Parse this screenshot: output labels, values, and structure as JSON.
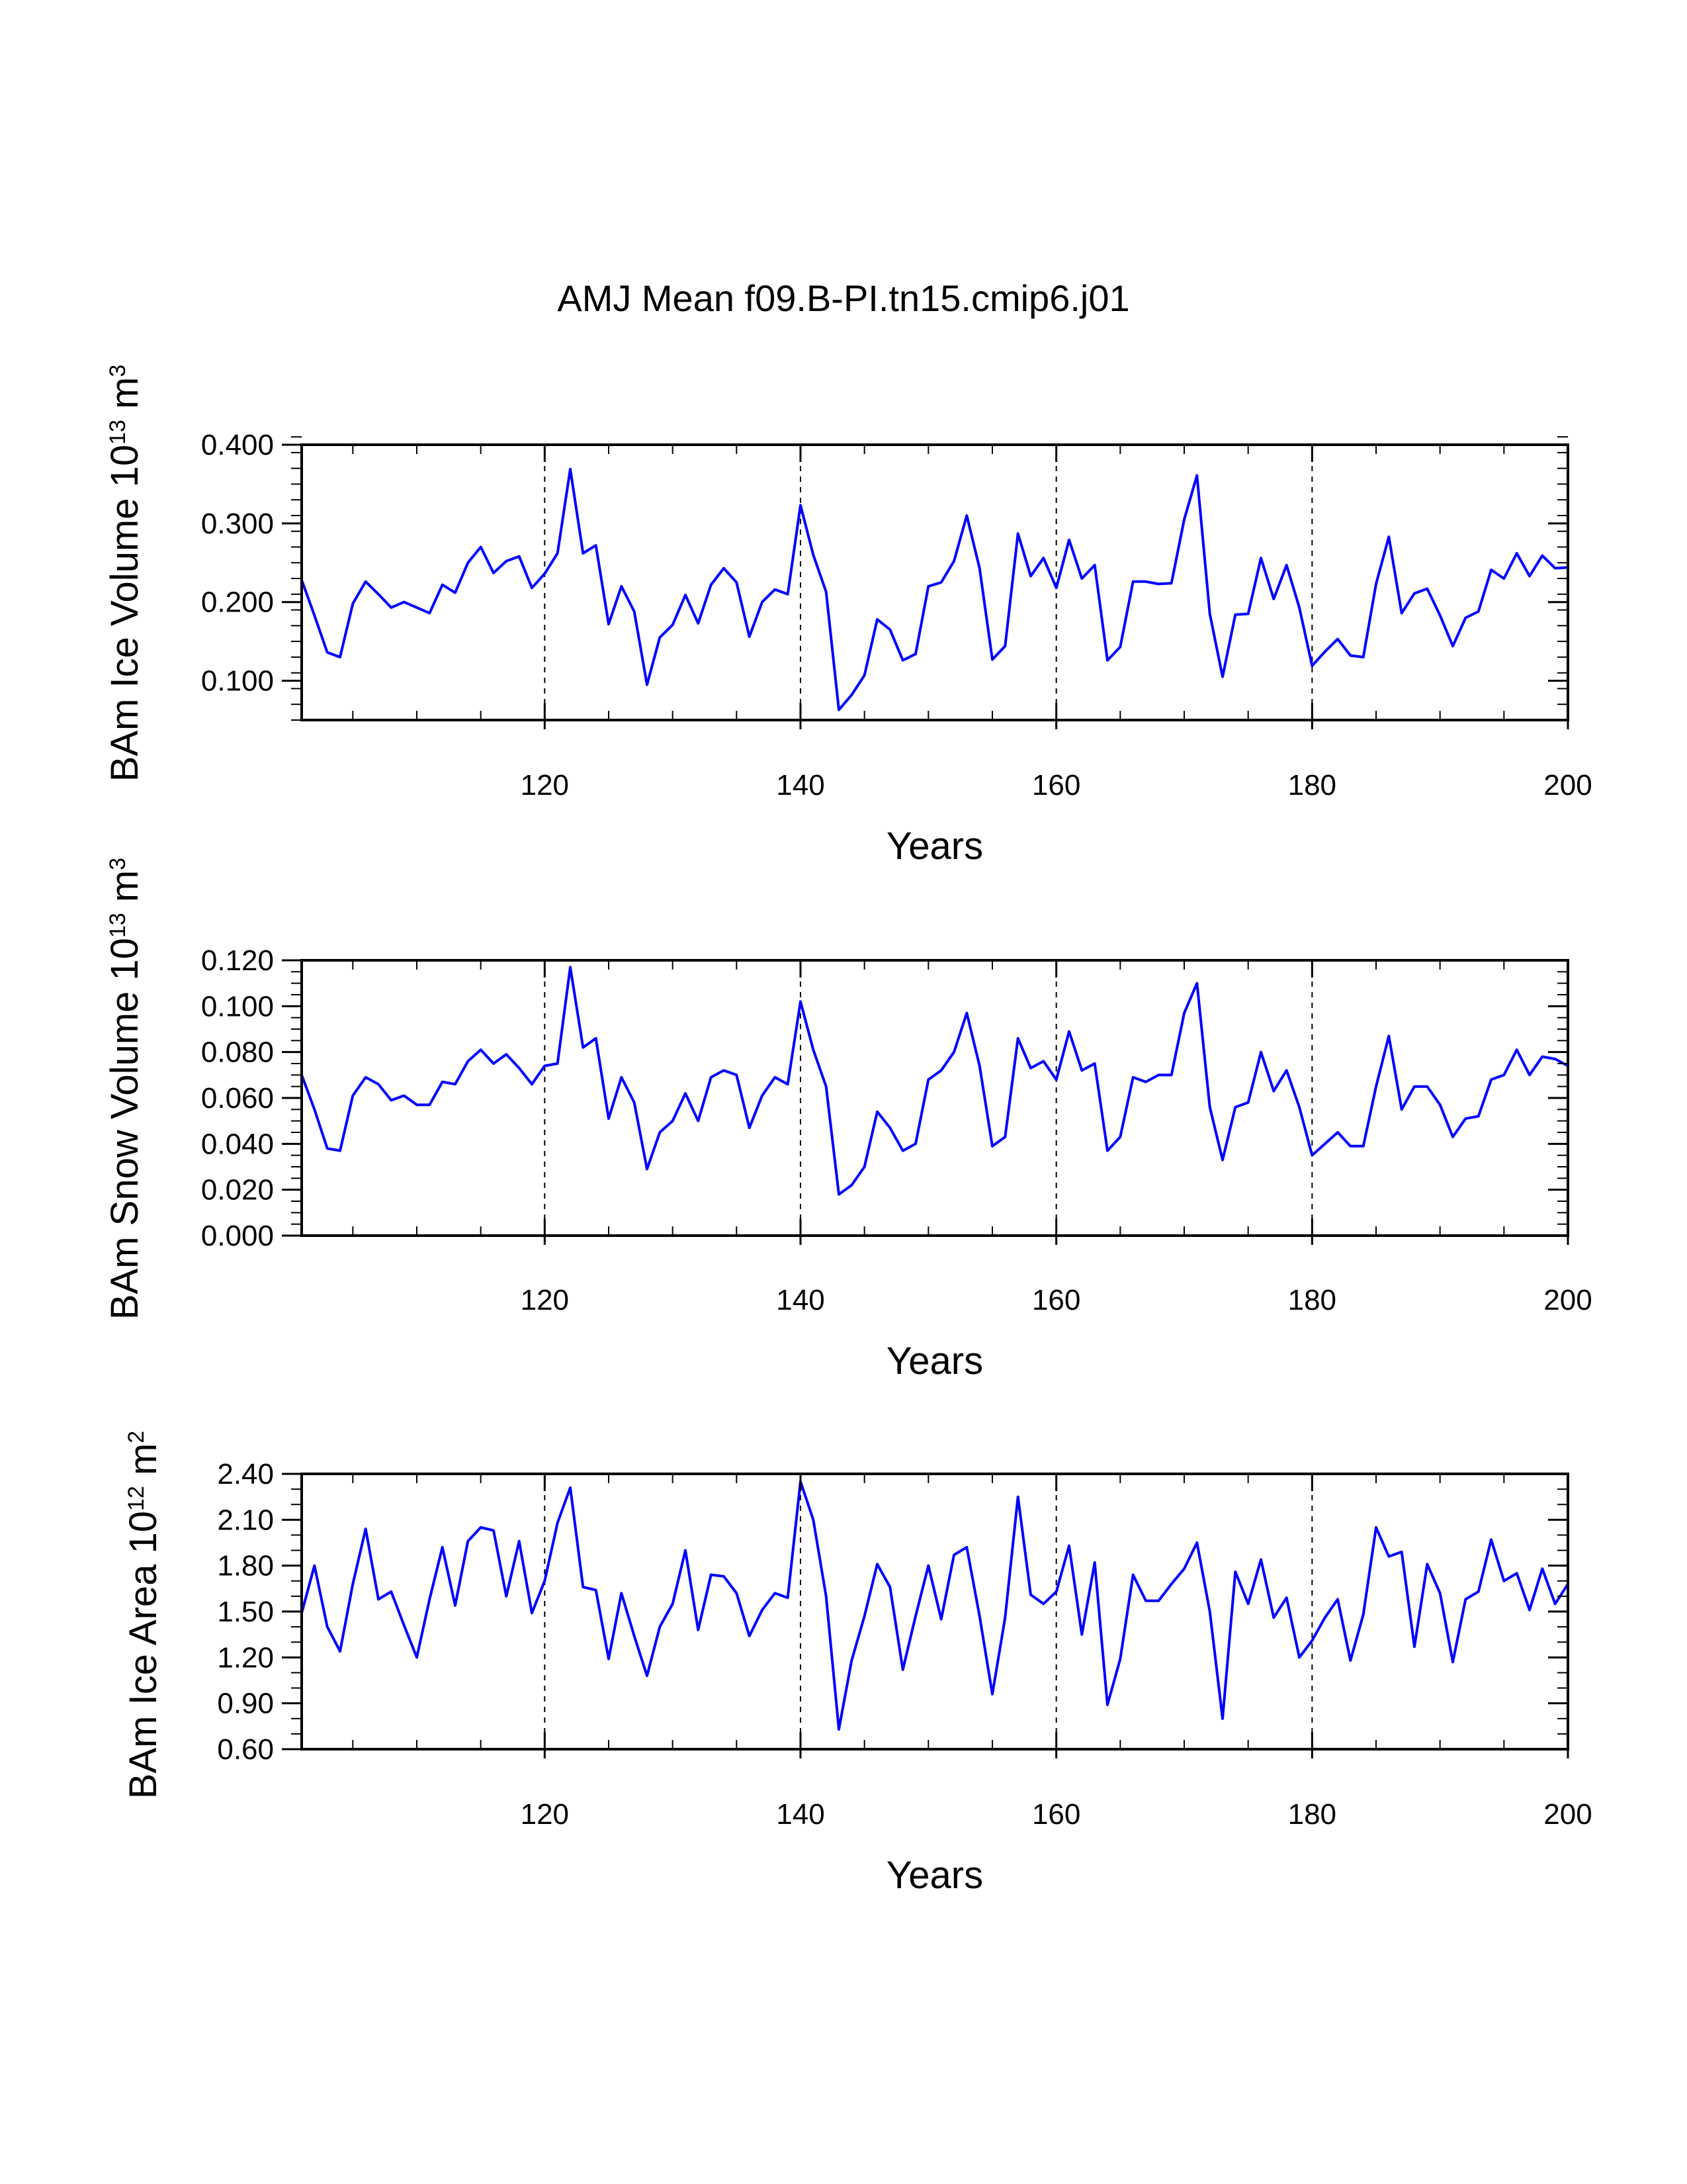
{
  "title": "AMJ Mean f09.B-PI.tn15.cmip6.j01",
  "colors": {
    "line": "#0000ff",
    "axes": "#000000",
    "background": "#ffffff"
  },
  "chart_data": [
    {
      "type": "line",
      "ylabel": "BAm Ice Volume 10",
      "ylabel_exp": "13",
      "ylabel_unit": " m",
      "ylabel_unit_exp": "3",
      "xlabel": "Years",
      "xlim": [
        101,
        200
      ],
      "ylim": [
        0.05,
        0.4
      ],
      "xticks": [
        120,
        140,
        160,
        180,
        200
      ],
      "xtick_labels": [
        "120",
        "140",
        "160",
        "180",
        "200"
      ],
      "yticks": [
        0.1,
        0.2,
        0.3,
        0.4
      ],
      "ytick_labels": [
        "0.100",
        "0.200",
        "0.300",
        "0.400"
      ],
      "yminor_step": 0.02,
      "vlines": [
        120,
        140,
        160,
        180
      ],
      "x_start": 101,
      "values": [
        0.228,
        0.183,
        0.136,
        0.13,
        0.198,
        0.226,
        0.21,
        0.193,
        0.2,
        0.193,
        0.186,
        0.222,
        0.212,
        0.25,
        0.27,
        0.237,
        0.252,
        0.258,
        0.218,
        0.236,
        0.262,
        0.369,
        0.262,
        0.272,
        0.172,
        0.22,
        0.188,
        0.095,
        0.155,
        0.171,
        0.209,
        0.173,
        0.222,
        0.243,
        0.225,
        0.156,
        0.2,
        0.216,
        0.21,
        0.323,
        0.26,
        0.213,
        0.063,
        0.082,
        0.107,
        0.178,
        0.165,
        0.126,
        0.134,
        0.22,
        0.225,
        0.252,
        0.31,
        0.243,
        0.127,
        0.144,
        0.287,
        0.233,
        0.256,
        0.218,
        0.279,
        0.23,
        0.247,
        0.126,
        0.143,
        0.226,
        0.226,
        0.223,
        0.224,
        0.305,
        0.361,
        0.185,
        0.105,
        0.184,
        0.185,
        0.256,
        0.204,
        0.247,
        0.193,
        0.119,
        0.137,
        0.153,
        0.132,
        0.13,
        0.223,
        0.283,
        0.186,
        0.211,
        0.217,
        0.183,
        0.144,
        0.18,
        0.188,
        0.241,
        0.23,
        0.262,
        0.233,
        0.259,
        0.243,
        0.244
      ]
    },
    {
      "type": "line",
      "ylabel": "BAm Snow Volume 10",
      "ylabel_exp": "13",
      "ylabel_unit": " m",
      "ylabel_unit_exp": "3",
      "xlabel": "Years",
      "xlim": [
        101,
        200
      ],
      "ylim": [
        0.0,
        0.12
      ],
      "xticks": [
        120,
        140,
        160,
        180,
        200
      ],
      "xtick_labels": [
        "120",
        "140",
        "160",
        "180",
        "200"
      ],
      "yticks": [
        0.0,
        0.02,
        0.04,
        0.06,
        0.08,
        0.1,
        0.12
      ],
      "ytick_labels": [
        "0.000",
        "0.020",
        "0.040",
        "0.060",
        "0.080",
        "0.100",
        "0.120"
      ],
      "yminor_step": 0.005,
      "vlines": [
        120,
        140,
        160,
        180
      ],
      "x_start": 101,
      "values": [
        0.07,
        0.055,
        0.038,
        0.037,
        0.061,
        0.069,
        0.066,
        0.059,
        0.061,
        0.057,
        0.057,
        0.067,
        0.066,
        0.076,
        0.081,
        0.075,
        0.079,
        0.073,
        0.066,
        0.074,
        0.075,
        0.117,
        0.082,
        0.086,
        0.051,
        0.069,
        0.058,
        0.029,
        0.045,
        0.05,
        0.062,
        0.05,
        0.069,
        0.072,
        0.07,
        0.047,
        0.061,
        0.069,
        0.066,
        0.102,
        0.081,
        0.065,
        0.018,
        0.022,
        0.03,
        0.054,
        0.047,
        0.037,
        0.04,
        0.068,
        0.072,
        0.08,
        0.097,
        0.074,
        0.039,
        0.043,
        0.086,
        0.073,
        0.076,
        0.068,
        0.089,
        0.072,
        0.075,
        0.037,
        0.043,
        0.069,
        0.067,
        0.07,
        0.07,
        0.097,
        0.11,
        0.056,
        0.033,
        0.056,
        0.058,
        0.08,
        0.063,
        0.072,
        0.056,
        0.035,
        0.04,
        0.045,
        0.039,
        0.039,
        0.065,
        0.087,
        0.055,
        0.065,
        0.065,
        0.057,
        0.043,
        0.051,
        0.052,
        0.068,
        0.07,
        0.081,
        0.07,
        0.078,
        0.077,
        0.074
      ]
    },
    {
      "type": "line",
      "ylabel": "BAm Ice Area 10",
      "ylabel_exp": "12",
      "ylabel_unit": " m",
      "ylabel_unit_exp": "2",
      "xlabel": "Years",
      "xlim": [
        101,
        200
      ],
      "ylim": [
        0.6,
        2.4
      ],
      "xticks": [
        120,
        140,
        160,
        180,
        200
      ],
      "xtick_labels": [
        "120",
        "140",
        "160",
        "180",
        "200"
      ],
      "yticks": [
        0.6,
        0.9,
        1.2,
        1.5,
        1.8,
        2.1,
        2.4
      ],
      "ytick_labels": [
        "0.60",
        "0.90",
        "1.20",
        "1.50",
        "1.80",
        "2.10",
        "2.40"
      ],
      "yminor_step": 0.1,
      "vlines": [
        120,
        140,
        160,
        180
      ],
      "x_start": 101,
      "values": [
        1.49,
        1.8,
        1.4,
        1.24,
        1.68,
        2.04,
        1.58,
        1.63,
        1.41,
        1.2,
        1.58,
        1.92,
        1.54,
        1.96,
        2.05,
        2.03,
        1.6,
        1.96,
        1.49,
        1.7,
        2.08,
        2.31,
        1.66,
        1.64,
        1.19,
        1.62,
        1.34,
        1.08,
        1.4,
        1.55,
        1.9,
        1.38,
        1.74,
        1.73,
        1.62,
        1.34,
        1.51,
        1.62,
        1.59,
        2.35,
        2.1,
        1.6,
        0.73,
        1.18,
        1.47,
        1.81,
        1.66,
        1.12,
        1.47,
        1.8,
        1.45,
        1.87,
        1.92,
        1.47,
        0.96,
        1.46,
        2.25,
        1.61,
        1.55,
        1.63,
        1.93,
        1.35,
        1.82,
        0.89,
        1.19,
        1.74,
        1.57,
        1.57,
        1.68,
        1.78,
        1.95,
        1.5,
        0.8,
        1.76,
        1.55,
        1.84,
        1.46,
        1.59,
        1.2,
        1.31,
        1.46,
        1.58,
        1.18,
        1.48,
        2.05,
        1.86,
        1.89,
        1.27,
        1.81,
        1.62,
        1.17,
        1.58,
        1.63,
        1.97,
        1.7,
        1.75,
        1.51,
        1.78,
        1.55,
        1.68
      ]
    }
  ]
}
